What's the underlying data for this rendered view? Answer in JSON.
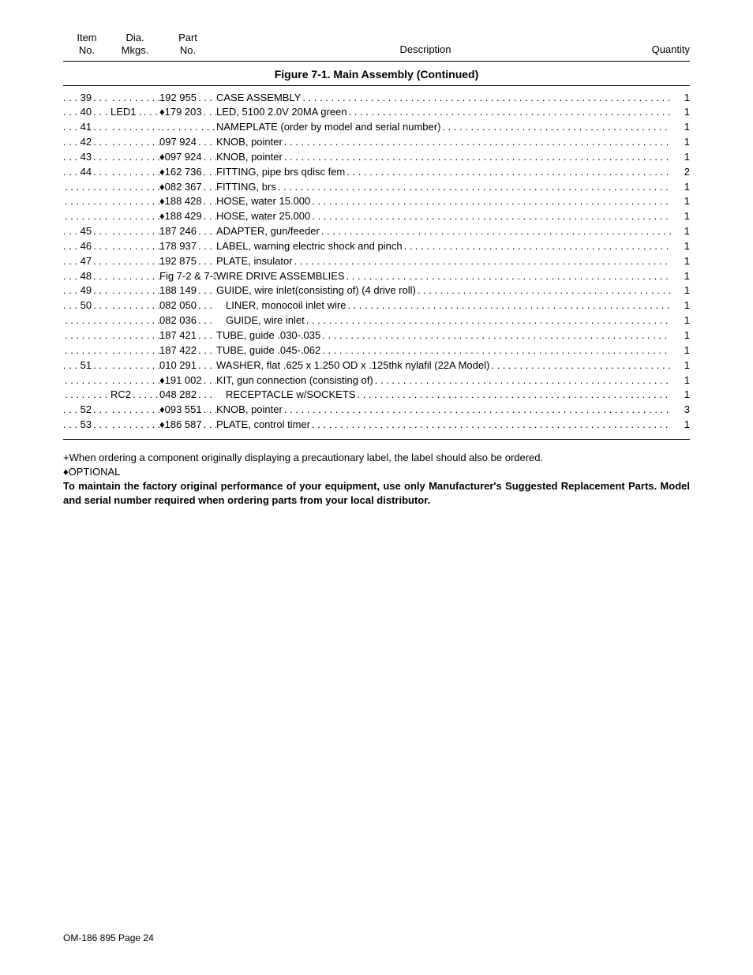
{
  "headers": {
    "item_l1": "Item",
    "item_l2": "No.",
    "dia_l1": "Dia.",
    "dia_l2": "Mkgs.",
    "part_l1": "Part",
    "part_l2": "No.",
    "desc": "Description",
    "qty": "Quantity"
  },
  "figure_title": "Figure 7-1. Main Assembly (Continued)",
  "rows": [
    {
      "item": ". . . 39",
      "dia": "",
      "part": "192 955",
      "desc": "CASE ASSEMBLY ",
      "qty": "1",
      "indent": ""
    },
    {
      "item": ". . . 40",
      "dia": "LED1  .",
      "part": "♦179 203",
      "desc": "LED, 5100 2.0V 20MA green ",
      "qty": "1",
      "indent": ""
    },
    {
      "item": ". . . 41",
      "dia": "",
      "part": "",
      "desc": "NAMEPLATE (order by model and serial number) ",
      "qty": "1",
      "indent": ""
    },
    {
      "item": ". . . 42",
      "dia": "",
      "part": "097 924",
      "desc": "KNOB, pointer ",
      "qty": "1",
      "indent": ""
    },
    {
      "item": ". . . 43",
      "dia": "",
      "part": "♦097 924",
      "desc": "KNOB, pointer ",
      "qty": "1",
      "indent": ""
    },
    {
      "item": ". . . 44",
      "dia": "",
      "part": "♦162 736",
      "desc": "FITTING, pipe brs qdisc fem ",
      "qty": "2",
      "indent": ""
    },
    {
      "item": "",
      "dia": "",
      "part": "♦082 367",
      "desc": "FITTING, brs ",
      "qty": "1",
      "indent": ""
    },
    {
      "item": "",
      "dia": "",
      "part": "♦188 428",
      "desc": "HOSE, water 15.000 ",
      "qty": "1",
      "indent": ""
    },
    {
      "item": "",
      "dia": "",
      "part": "♦188 429",
      "desc": "HOSE, water 25.000 ",
      "qty": "1",
      "indent": ""
    },
    {
      "item": ". . . 45",
      "dia": "",
      "part": "187 246",
      "desc": "ADAPTER, gun/feeder ",
      "qty": "1",
      "indent": ""
    },
    {
      "item": ". . . 46",
      "dia": "",
      "part": "178 937",
      "desc": "LABEL, warning electric shock and pinch ",
      "qty": "1",
      "indent": ""
    },
    {
      "item": ". . . 47",
      "dia": "",
      "part": "192 875",
      "desc": "PLATE, insulator ",
      "qty": "1",
      "indent": ""
    },
    {
      "item": ". . . 48",
      "dia": "",
      "part": "Fig 7-2 & 7-3",
      "desc": "WIRE DRIVE ASSEMBLIES ",
      "qty": "1",
      "indent": ""
    },
    {
      "item": ". . . 49",
      "dia": "",
      "part": "188 149",
      "desc": "GUIDE, wire inlet(consisting of) (4 drive roll) ",
      "qty": "1",
      "indent": ""
    },
    {
      "item": ". . . 50",
      "dia": "",
      "part": "082 050",
      "desc": "LINER, monocoil inlet wire ",
      "qty": "1",
      "indent": "indent1"
    },
    {
      "item": "",
      "dia": "",
      "part": "082 036",
      "desc": "GUIDE, wire inlet ",
      "qty": "1",
      "indent": "indent1"
    },
    {
      "item": "",
      "dia": "",
      "part": "187 421",
      "desc": "TUBE, guide .030-.035 ",
      "qty": "1",
      "indent": ""
    },
    {
      "item": "",
      "dia": "",
      "part": "187 422",
      "desc": "TUBE, guide .045-.062 ",
      "qty": "1",
      "indent": ""
    },
    {
      "item": ". . . 51",
      "dia": "",
      "part": "010 291",
      "desc": "WASHER, flat .625 x 1.250 OD x .125thk nylafil (22A Model) ",
      "qty": "1",
      "indent": ""
    },
    {
      "item": "",
      "dia": "",
      "part": "♦191 002",
      "desc": "KIT, gun connection (consisting of) ",
      "qty": "1",
      "indent": ""
    },
    {
      "item": "",
      "dia": "RC2",
      "part": "048 282",
      "desc": "RECEPTACLE w/SOCKETS ",
      "qty": "1",
      "indent": "indent1"
    },
    {
      "item": ". . . 52",
      "dia": "",
      "part": "♦093 551",
      "desc": "KNOB, pointer ",
      "qty": "3",
      "indent": ""
    },
    {
      "item": ". . . 53",
      "dia": "",
      "part": "♦186 587",
      "desc": "PLATE, control timer ",
      "qty": "1",
      "indent": ""
    }
  ],
  "note_plus": "+When ordering a component originally displaying a precautionary label, the label should also be ordered.",
  "note_opt": "♦OPTIONAL",
  "note_bold": "To maintain the factory original performance of your equipment, use only Manufacturer's Suggested Replacement Parts. Model and serial number required  when ordering parts from your local distributor.",
  "footer": "OM-186 895 Page 24"
}
